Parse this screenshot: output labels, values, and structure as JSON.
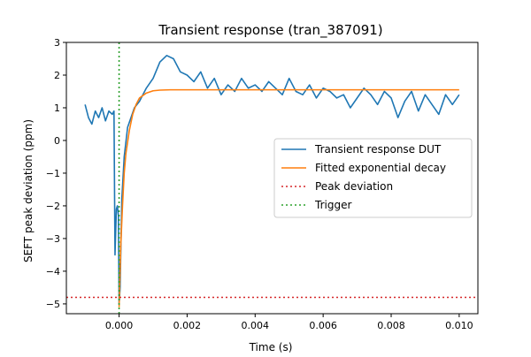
{
  "chart_data": {
    "type": "line",
    "title": "Transient response (tran_387091)",
    "xlabel": "Time (s)",
    "ylabel": "SEFT peak deviation (ppm)",
    "xlim": [
      -0.00155,
      0.01055
    ],
    "ylim": [
      -5.3,
      3.0
    ],
    "x_ticks": [
      0.0,
      0.002,
      0.004,
      0.006,
      0.008,
      0.01
    ],
    "x_tick_labels": [
      "0.000",
      "0.002",
      "0.004",
      "0.006",
      "0.008",
      "0.010"
    ],
    "y_ticks": [
      -5,
      -4,
      -3,
      -2,
      -1,
      0,
      1,
      2,
      3
    ],
    "y_tick_labels": [
      "−5",
      "−4",
      "−3",
      "−2",
      "−1",
      "0",
      "1",
      "2",
      "3"
    ],
    "grid": false,
    "legend_position": "center-right",
    "series": [
      {
        "name": "Transient response DUT",
        "style": "solid",
        "color": "#1f77b4",
        "x": [
          -0.001,
          -0.0009,
          -0.0008,
          -0.0007,
          -0.0006,
          -0.0005,
          -0.0004,
          -0.0003,
          -0.0002,
          -0.00015,
          -0.00012,
          -0.0001,
          -8e-05,
          -5e-05,
          -2e-05,
          0.0,
          3e-05,
          8e-05,
          0.00015,
          0.00025,
          0.00035,
          0.00045,
          0.0006,
          0.0008,
          0.001,
          0.0012,
          0.0014,
          0.0016,
          0.0018,
          0.002,
          0.0022,
          0.0024,
          0.0026,
          0.0028,
          0.003,
          0.0032,
          0.0034,
          0.0036,
          0.0038,
          0.004,
          0.0042,
          0.0044,
          0.0046,
          0.0048,
          0.005,
          0.0052,
          0.0054,
          0.0056,
          0.0058,
          0.006,
          0.0062,
          0.0064,
          0.0066,
          0.0068,
          0.007,
          0.0072,
          0.0074,
          0.0076,
          0.0078,
          0.008,
          0.0082,
          0.0084,
          0.0086,
          0.0088,
          0.009,
          0.0092,
          0.0094,
          0.0096,
          0.0098,
          0.01
        ],
        "y": [
          1.1,
          0.7,
          0.5,
          0.9,
          0.7,
          1.0,
          0.6,
          0.9,
          0.8,
          0.9,
          -3.5,
          -2.8,
          -2.1,
          -2.0,
          -2.3,
          -5.0,
          -4.5,
          -1.8,
          -0.5,
          0.4,
          0.7,
          1.0,
          1.2,
          1.6,
          1.9,
          2.4,
          2.6,
          2.5,
          2.1,
          2.0,
          1.8,
          2.1,
          1.6,
          1.9,
          1.4,
          1.7,
          1.5,
          1.9,
          1.6,
          1.7,
          1.5,
          1.8,
          1.6,
          1.4,
          1.9,
          1.5,
          1.4,
          1.7,
          1.3,
          1.6,
          1.5,
          1.3,
          1.4,
          1.0,
          1.3,
          1.6,
          1.4,
          1.1,
          1.5,
          1.3,
          0.7,
          1.2,
          1.5,
          0.9,
          1.4,
          1.1,
          0.8,
          1.4,
          1.1,
          1.4
        ]
      },
      {
        "name": "Fitted exponential decay",
        "style": "solid",
        "color": "#ff7f0e",
        "x": [
          0.0,
          5e-05,
          0.0001,
          0.00015,
          0.0002,
          0.0003,
          0.0004,
          0.0005,
          0.0006,
          0.0008,
          0.001,
          0.0012,
          0.0015,
          0.002,
          0.003,
          0.005,
          0.01
        ],
        "y": [
          -5.1,
          -3.2,
          -2.0,
          -1.0,
          -0.4,
          0.3,
          0.8,
          1.1,
          1.3,
          1.45,
          1.52,
          1.54,
          1.55,
          1.55,
          1.55,
          1.55,
          1.55
        ]
      },
      {
        "name": "Peak deviation",
        "style": "dotted",
        "color": "#d62728",
        "orientation": "horizontal",
        "value": -4.8
      },
      {
        "name": "Trigger",
        "style": "dotted",
        "color": "#2ca02c",
        "orientation": "vertical",
        "value": 0.0
      }
    ]
  }
}
